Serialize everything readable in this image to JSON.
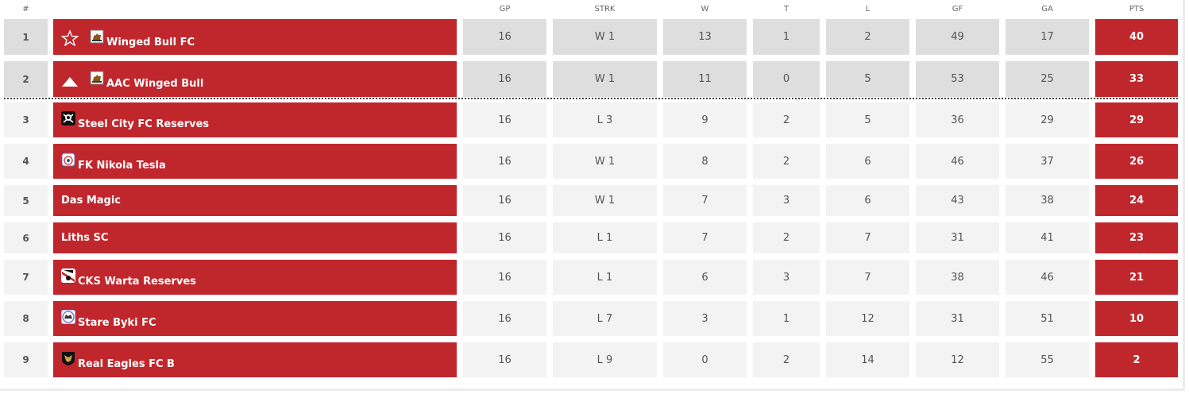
{
  "headers": {
    "rank": "#",
    "gp": "GP",
    "strk": "STRK",
    "w": "W",
    "t": "T",
    "l": "L",
    "gf": "GF",
    "ga": "GA",
    "pts": "PTS"
  },
  "colors": {
    "accent": "#c0272d",
    "promoted_row_bg": "#dedede",
    "row_bg": "#f3f3f3"
  },
  "rows": [
    {
      "rank": "1",
      "team": "Winged Bull FC",
      "marker": "star-outline-icon",
      "crest": "winged-bull-crest-icon",
      "gp": "16",
      "strk": "W 1",
      "w": "13",
      "t": "1",
      "l": "2",
      "gf": "49",
      "ga": "17",
      "pts": "40"
    },
    {
      "rank": "2",
      "team": "AAC Winged Bull",
      "marker": "triangle-up-icon",
      "crest": "winged-bull-crest-icon",
      "gp": "16",
      "strk": "W 1",
      "w": "11",
      "t": "0",
      "l": "5",
      "gf": "53",
      "ga": "25",
      "pts": "33"
    },
    {
      "rank": "3",
      "team": "Steel City FC Reserves",
      "crest": "steel-city-crest-icon",
      "gp": "16",
      "strk": "L 3",
      "w": "9",
      "t": "2",
      "l": "5",
      "gf": "36",
      "ga": "29",
      "pts": "29"
    },
    {
      "rank": "4",
      "team": "FK Nikola Tesla",
      "crest": "nikola-tesla-crest-icon",
      "gp": "16",
      "strk": "W 1",
      "w": "8",
      "t": "2",
      "l": "6",
      "gf": "46",
      "ga": "37",
      "pts": "26"
    },
    {
      "rank": "5",
      "team": "Das Magic",
      "gp": "16",
      "strk": "W 1",
      "w": "7",
      "t": "3",
      "l": "6",
      "gf": "43",
      "ga": "38",
      "pts": "24"
    },
    {
      "rank": "6",
      "team": "Liths SC",
      "gp": "16",
      "strk": "L 1",
      "w": "7",
      "t": "2",
      "l": "7",
      "gf": "31",
      "ga": "41",
      "pts": "23"
    },
    {
      "rank": "7",
      "team": "CKS Warta Reserves",
      "crest": "warta-crest-icon",
      "gp": "16",
      "strk": "L 1",
      "w": "6",
      "t": "3",
      "l": "7",
      "gf": "38",
      "ga": "46",
      "pts": "21"
    },
    {
      "rank": "8",
      "team": "Stare Byki FC",
      "crest": "stare-byki-crest-icon",
      "gp": "16",
      "strk": "L 7",
      "w": "3",
      "t": "1",
      "l": "12",
      "gf": "31",
      "ga": "51",
      "pts": "10"
    },
    {
      "rank": "9",
      "team": "Real Eagles FC B",
      "crest": "real-eagles-crest-icon",
      "gp": "16",
      "strk": "L 9",
      "w": "0",
      "t": "2",
      "l": "14",
      "gf": "12",
      "ga": "55",
      "pts": "2"
    }
  ]
}
